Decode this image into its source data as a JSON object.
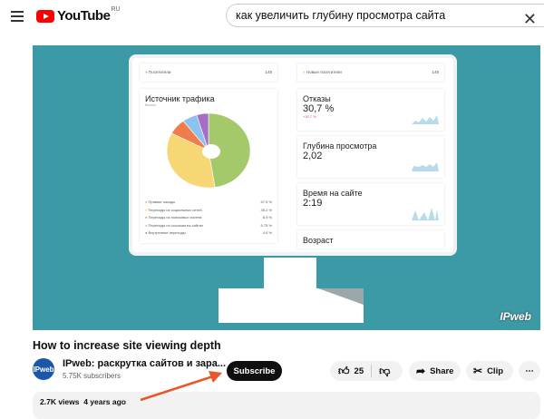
{
  "header": {
    "logo_text": "YouTube",
    "region": "RU",
    "search_value": "как увеличить глубину просмотра сайта"
  },
  "dashboard": {
    "visitors_label": "Посетители",
    "visitors_value": "149",
    "new_visitors_label": "Новые посетители",
    "new_visitors_value": "149",
    "traffic": {
      "title": "Источник трафика",
      "subtitle": "Визиты",
      "items": [
        {
          "label": "Прямые заходы",
          "value": "47.5 %",
          "pct": 47.5,
          "color": "#a3c96b"
        },
        {
          "label": "Переходы из социальных сетей",
          "value": "35.2 %",
          "pct": 35.2,
          "color": "#f7d774"
        },
        {
          "label": "Переходы из поисковых систем",
          "value": "6.9 %",
          "pct": 6.9,
          "color": "#ef7c4a"
        },
        {
          "label": "Переходы по ссылкам на сайтах",
          "value": "5.75 %",
          "pct": 5.75,
          "color": "#8ec1ee"
        },
        {
          "label": "Внутренние переходы",
          "value": "4.6 %",
          "pct": 4.6,
          "color": "#a86bc6"
        }
      ]
    },
    "bounce": {
      "label": "Отказы",
      "value": "30,7 %",
      "delta": "+30,7 %"
    },
    "depth": {
      "label": "Глубина просмотра",
      "value": "2,02"
    },
    "time": {
      "label": "Время на сайте",
      "value": "2:19"
    },
    "age": {
      "label": "Возраст"
    }
  },
  "watermark": "IPweb",
  "video": {
    "title": "How to increase site viewing depth",
    "channel": "IPweb: раскрутка сайтов и зара...",
    "avatar_text": "IPweb",
    "subscribers": "5.75K subscribers",
    "subscribe_label": "Subscribe",
    "likes": "25",
    "share_label": "Share",
    "clip_label": "Clip",
    "views": "2.7K views",
    "age": "4 years ago"
  },
  "colors": {
    "video_bg": "#3b9aa5",
    "arrow": "#e8572a",
    "brand": "#ff0000"
  }
}
